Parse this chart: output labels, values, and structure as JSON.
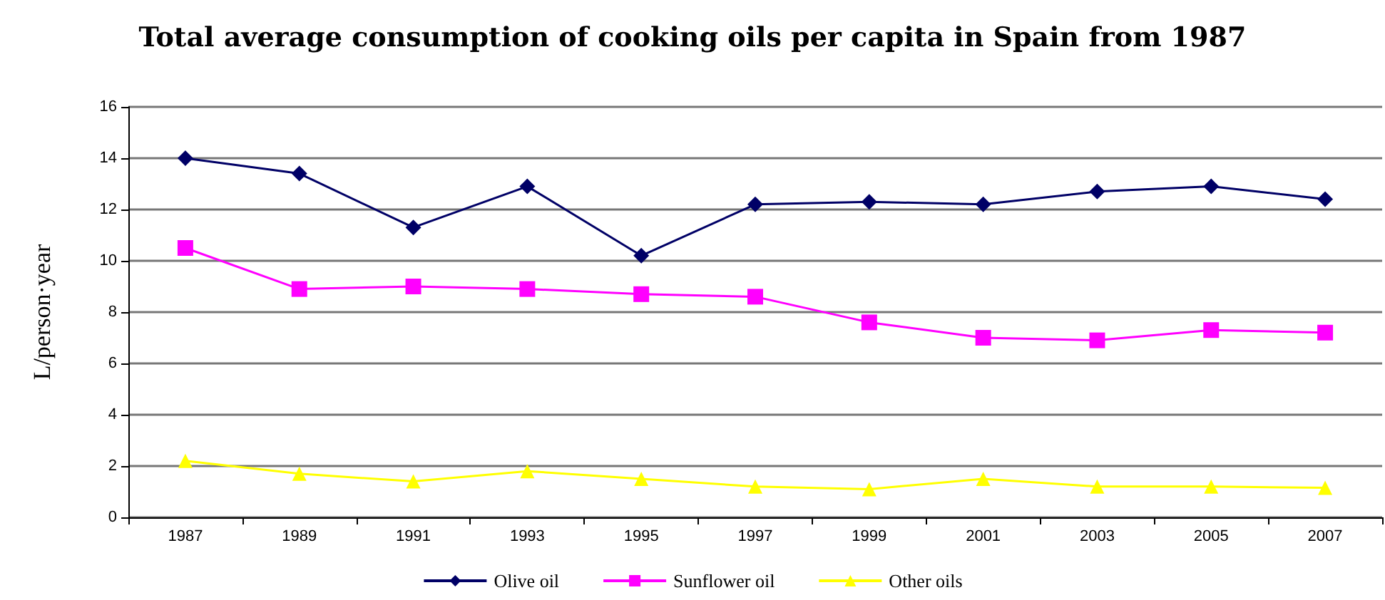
{
  "chart_data": {
    "type": "line",
    "title": "Total average consumption of cooking oils per capita in Spain from 1987",
    "ylabel": "L/person·year",
    "categories": [
      "1987",
      "1989",
      "1991",
      "1993",
      "1995",
      "1997",
      "1999",
      "2001",
      "2003",
      "2005",
      "2007"
    ],
    "series": [
      {
        "name": "Olive oil",
        "color": "#000066",
        "marker": "diamond",
        "values": [
          14,
          13.4,
          11.3,
          12.9,
          10.2,
          12.2,
          12.3,
          12.2,
          12.7,
          12.9,
          12.4
        ]
      },
      {
        "name": "Sunflower oil",
        "color": "#ff00ff",
        "marker": "square",
        "values": [
          10.5,
          8.9,
          9.0,
          8.9,
          8.7,
          8.6,
          7.6,
          7.0,
          6.9,
          7.3,
          7.2
        ]
      },
      {
        "name": "Other oils",
        "color": "#ffff00",
        "marker": "triangle",
        "values": [
          2.2,
          1.7,
          1.4,
          1.8,
          1.5,
          1.2,
          1.1,
          1.5,
          1.2,
          1.2,
          1.15
        ]
      }
    ],
    "ylim": [
      0,
      16
    ],
    "yticks": [
      0,
      2,
      4,
      6,
      8,
      10,
      12,
      14,
      16
    ],
    "grid": "y",
    "legend": "bottom",
    "line_style": "solid"
  }
}
